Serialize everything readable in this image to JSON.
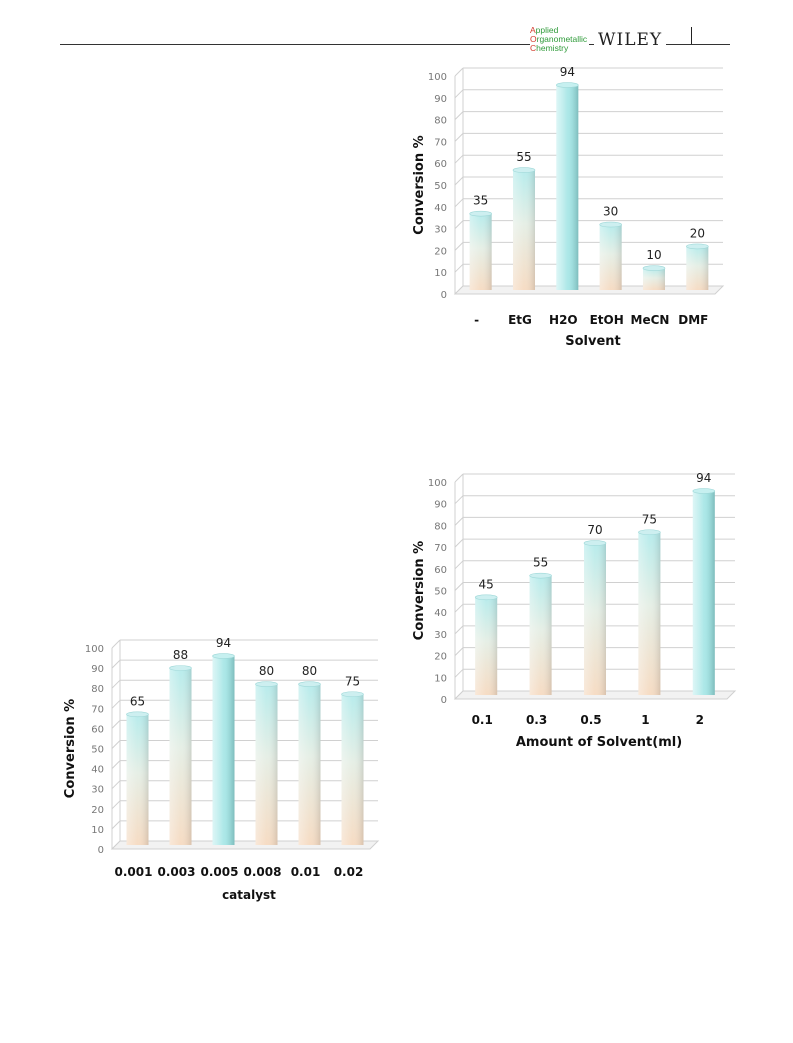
{
  "header": {
    "journal_line1": "Applied",
    "journal_line2": "Organometallic",
    "journal_line3": "Chemistry",
    "publisher": "WILEY"
  },
  "chart_data": [
    {
      "type": "bar",
      "categories": [
        "-",
        "EtG",
        "H2O",
        "EtOH",
        "MeCN",
        "DMF"
      ],
      "values": [
        35,
        55,
        94,
        30,
        10,
        20
      ],
      "xlabel": "Solvent",
      "ylabel": "Conversion %",
      "ylim": [
        0,
        100
      ],
      "yticks": [
        0,
        10,
        20,
        30,
        40,
        50,
        60,
        70,
        80,
        90,
        100
      ],
      "highlight_index": 2,
      "grid": true
    },
    {
      "type": "bar",
      "categories": [
        "0.1",
        "0.3",
        "0.5",
        "1",
        "2"
      ],
      "values": [
        45,
        55,
        70,
        75,
        94
      ],
      "xlabel": "Amount  of Solvent(ml)",
      "ylabel": "Conversion %",
      "ylim": [
        0,
        100
      ],
      "yticks": [
        0,
        10,
        20,
        30,
        40,
        50,
        60,
        70,
        80,
        90,
        100
      ],
      "highlight_index": 4,
      "grid": true
    },
    {
      "type": "bar",
      "categories": [
        "0.001",
        "0.003",
        "0.005",
        "0.008",
        "0.01",
        "0.02"
      ],
      "values": [
        65,
        88,
        94,
        80,
        80,
        75
      ],
      "xlabel": "catalyst",
      "ylabel": "Conversion  %",
      "ylim": [
        0,
        100
      ],
      "yticks": [
        0,
        10,
        20,
        30,
        40,
        50,
        60,
        70,
        80,
        90,
        100
      ],
      "highlight_index": 2,
      "grid": true
    }
  ],
  "colors": {
    "bar_top": "#b8ecec",
    "bar_bottom": "#f6dcc4",
    "bar_highlight": "#a8e6e6",
    "grid": "#d0d0d0"
  }
}
